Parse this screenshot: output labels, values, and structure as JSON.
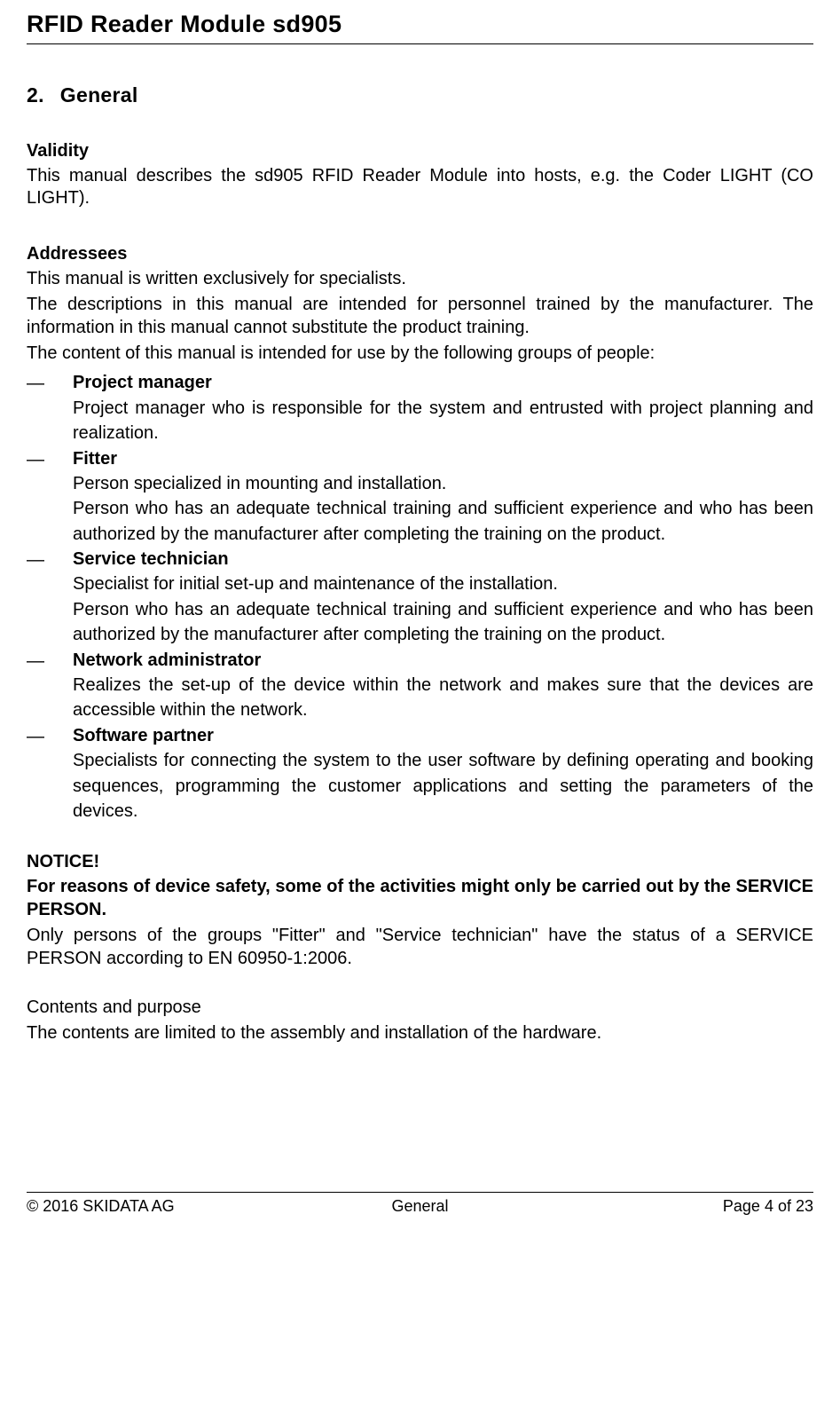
{
  "doc_title": "RFID Reader Module sd905",
  "section": {
    "number": "2.",
    "title": "General"
  },
  "validity": {
    "heading": "Validity",
    "text": "This manual describes the sd905 RFID Reader Module into hosts, e.g. the Coder LIGHT (CO LIGHT)."
  },
  "addressees": {
    "heading": "Addressees",
    "p1": "This manual is written exclusively for specialists.",
    "p2": "The descriptions in this manual are intended for personnel trained by the manufacturer. The information in this manual cannot substitute the product training.",
    "p3": "The content of this manual is intended for use by the following groups of people:",
    "roles": [
      {
        "name": "Project manager",
        "desc": [
          "Project manager who is responsible for the system and entrusted with project planning and realization."
        ]
      },
      {
        "name": "Fitter",
        "desc": [
          "Person specialized in mounting and installation.",
          "Person who has an adequate technical training and sufficient experience and who has been authorized by the manufacturer after completing the training on the product."
        ]
      },
      {
        "name": "Service technician",
        "desc": [
          "Specialist for initial set-up and maintenance of the installation.",
          "Person who has an adequate technical training and sufficient experience and who has been authorized by the manufacturer after completing the training on the product."
        ]
      },
      {
        "name": "Network administrator",
        "desc": [
          "Realizes the set-up of the device within the network and makes sure that the devices are accessible within the network."
        ]
      },
      {
        "name": "Software partner",
        "desc": [
          "Specialists for connecting the system to the user software by defining operating and booking sequences, programming the customer applications and setting the parameters of the devices."
        ]
      }
    ]
  },
  "notice": {
    "heading": "NOTICE!",
    "bold": "For reasons of device safety, some of the activities might only be carried out by the SERVICE PERSON.",
    "text": "Only persons of the groups \"Fitter\" and \"Service technician\" have the status of a SERVICE PERSON according to EN 60950-1:2006."
  },
  "contents": {
    "heading": "Contents and purpose",
    "text": "The contents are limited to the assembly and installation of the hardware."
  },
  "footer": {
    "left": "© 2016 SKIDATA AG",
    "center": "General",
    "right": "Page 4 of 23"
  }
}
